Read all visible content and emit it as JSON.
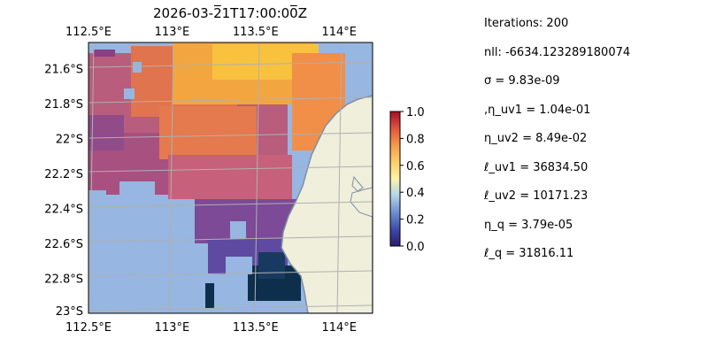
{
  "chart_data": {
    "type": "heatmap",
    "title": "2026-03-2̅1T17:00:00̅Z",
    "x_ticks": [
      "112.5°E",
      "113°E",
      "113.5°E",
      "114°E"
    ],
    "x_tick_values": [
      112.5,
      113.0,
      113.5,
      114.0
    ],
    "y_ticks": [
      "21.6°S",
      "21.8°S",
      "22°S",
      "22.2°S",
      "22.4°S",
      "22.6°S",
      "22.8°S",
      "23°S"
    ],
    "y_tick_values": [
      -21.6,
      -21.8,
      -22.0,
      -22.2,
      -22.4,
      -22.6,
      -22.8,
      -23.0
    ],
    "xlim": [
      112.5,
      114.2
    ],
    "ylim": [
      -23.0,
      -21.45
    ],
    "grid": true,
    "colorbar": {
      "ticks": [
        "0.0",
        "0.2",
        "0.4",
        "0.6",
        "0.8",
        "1.0"
      ],
      "tick_values": [
        0.0,
        0.2,
        0.4,
        0.6,
        0.8,
        1.0
      ],
      "range": [
        0.0,
        1.0
      ],
      "colormap": "RdYlBu_r-like"
    },
    "colors": {
      "ocean_nodata": "#97b6e1",
      "land": "#efefdb",
      "coast": "#7f8fa6"
    }
  },
  "stats": [
    "Iterations: 200",
    "nll: -6634.123289180074",
    "σ = 9.83e-09",
    ",η_uv1 = 1.04e-01",
    "η_uv2 = 8.49e-02",
    "ℓ_uv1 = 36834.50",
    "ℓ_uv2 = 10171.23",
    "η_q = 3.79e-05",
    "ℓ_q = 31816.11"
  ]
}
